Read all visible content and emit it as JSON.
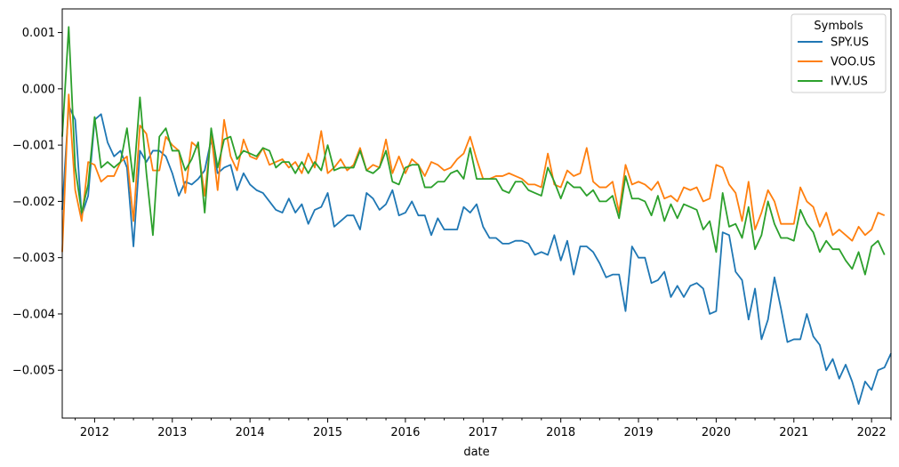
{
  "chart_data": {
    "type": "line",
    "xlabel": "date",
    "ylabel": "",
    "title": "",
    "x_start": "2011-08",
    "x_end": "2022-04",
    "xlim": [
      "2011-08",
      "2022-04"
    ],
    "ylim": [
      -0.00585,
      0.00142
    ],
    "x_major_ticks": [
      {
        "x": "2012-01",
        "label": "2012"
      },
      {
        "x": "2013-01",
        "label": "2013"
      },
      {
        "x": "2014-01",
        "label": "2014"
      },
      {
        "x": "2015-01",
        "label": "2015"
      },
      {
        "x": "2016-01",
        "label": "2016"
      },
      {
        "x": "2017-01",
        "label": "2017"
      },
      {
        "x": "2018-01",
        "label": "2018"
      },
      {
        "x": "2019-01",
        "label": "2019"
      },
      {
        "x": "2020-01",
        "label": "2020"
      },
      {
        "x": "2021-01",
        "label": "2021"
      },
      {
        "x": "2022-01",
        "label": "2022"
      }
    ],
    "y_ticks": [
      {
        "value": 0.001,
        "label": "0.001"
      },
      {
        "value": 0.0,
        "label": "0.000"
      },
      {
        "value": -0.001,
        "label": "−0.001"
      },
      {
        "value": -0.002,
        "label": "−0.002"
      },
      {
        "value": -0.003,
        "label": "−0.003"
      },
      {
        "value": -0.004,
        "label": "−0.004"
      },
      {
        "value": -0.005,
        "label": "−0.005"
      }
    ],
    "legend": {
      "title": "Symbols",
      "position": "top-right"
    },
    "series": [
      {
        "name": "SPY.US",
        "color": "#1f77b4",
        "values": [
          -0.00215,
          -0.0003,
          -0.00055,
          -0.00225,
          -0.0019,
          -0.00055,
          -0.00045,
          -0.00095,
          -0.0012,
          -0.0011,
          -0.0014,
          -0.0028,
          -0.0011,
          -0.0013,
          -0.0011,
          -0.0011,
          -0.0012,
          -0.0015,
          -0.0019,
          -0.00165,
          -0.0017,
          -0.0016,
          -0.00145,
          -0.0009,
          -0.0015,
          -0.0014,
          -0.00135,
          -0.0018,
          -0.0015,
          -0.0017,
          -0.0018,
          -0.00185,
          -0.002,
          -0.00215,
          -0.0022,
          -0.00195,
          -0.0022,
          -0.00205,
          -0.0024,
          -0.00215,
          -0.0021,
          -0.00185,
          -0.00245,
          -0.00235,
          -0.00225,
          -0.00225,
          -0.0025,
          -0.00185,
          -0.00195,
          -0.00215,
          -0.00205,
          -0.0018,
          -0.00225,
          -0.0022,
          -0.002,
          -0.00225,
          -0.00225,
          -0.0026,
          -0.0023,
          -0.0025,
          -0.0025,
          -0.0025,
          -0.0021,
          -0.0022,
          -0.00205,
          -0.00245,
          -0.00265,
          -0.00265,
          -0.00275,
          -0.00275,
          -0.0027,
          -0.0027,
          -0.00275,
          -0.00295,
          -0.0029,
          -0.00295,
          -0.0026,
          -0.00305,
          -0.0027,
          -0.0033,
          -0.0028,
          -0.0028,
          -0.0029,
          -0.0031,
          -0.00335,
          -0.0033,
          -0.0033,
          -0.00395,
          -0.0028,
          -0.003,
          -0.003,
          -0.00345,
          -0.0034,
          -0.00325,
          -0.0037,
          -0.0035,
          -0.0037,
          -0.0035,
          -0.00345,
          -0.00355,
          -0.004,
          -0.00395,
          -0.00255,
          -0.0026,
          -0.00325,
          -0.0034,
          -0.0041,
          -0.00355,
          -0.00445,
          -0.0041,
          -0.00335,
          -0.0039,
          -0.0045,
          -0.00445,
          -0.00445,
          -0.004,
          -0.0044,
          -0.00455,
          -0.005,
          -0.0048,
          -0.00515,
          -0.0049,
          -0.0052,
          -0.0056,
          -0.0052,
          -0.00535,
          -0.005,
          -0.00495,
          -0.0047
        ]
      },
      {
        "name": "VOO.US",
        "color": "#ff7f0e",
        "values": [
          -0.0029,
          -0.0001,
          -0.0018,
          -0.00235,
          -0.0013,
          -0.00135,
          -0.00165,
          -0.00155,
          -0.00155,
          -0.0013,
          -0.0012,
          -0.00235,
          -0.00065,
          -0.0008,
          -0.00145,
          -0.00145,
          -0.00085,
          -0.001,
          -0.0011,
          -0.00185,
          -0.00095,
          -0.00105,
          -0.0019,
          -0.0008,
          -0.0018,
          -0.00055,
          -0.0012,
          -0.00145,
          -0.0009,
          -0.0012,
          -0.00125,
          -0.00105,
          -0.00135,
          -0.0013,
          -0.00125,
          -0.0014,
          -0.0013,
          -0.0015,
          -0.00115,
          -0.0014,
          -0.00075,
          -0.0015,
          -0.0014,
          -0.00125,
          -0.00145,
          -0.00135,
          -0.00105,
          -0.00145,
          -0.00135,
          -0.0014,
          -0.0009,
          -0.0015,
          -0.0012,
          -0.0015,
          -0.00125,
          -0.00135,
          -0.00155,
          -0.0013,
          -0.00135,
          -0.00145,
          -0.0014,
          -0.00125,
          -0.00115,
          -0.00085,
          -0.00125,
          -0.0016,
          -0.0016,
          -0.00155,
          -0.00155,
          -0.0015,
          -0.00155,
          -0.0016,
          -0.0017,
          -0.0017,
          -0.00175,
          -0.00115,
          -0.0017,
          -0.00175,
          -0.00145,
          -0.00155,
          -0.0015,
          -0.00105,
          -0.00165,
          -0.00175,
          -0.00175,
          -0.00165,
          -0.0022,
          -0.00135,
          -0.0017,
          -0.00165,
          -0.0017,
          -0.0018,
          -0.00165,
          -0.00195,
          -0.0019,
          -0.002,
          -0.00175,
          -0.0018,
          -0.00175,
          -0.002,
          -0.00195,
          -0.00135,
          -0.0014,
          -0.0017,
          -0.00185,
          -0.00235,
          -0.00165,
          -0.0025,
          -0.0022,
          -0.0018,
          -0.002,
          -0.0024,
          -0.0024,
          -0.0024,
          -0.00175,
          -0.002,
          -0.0021,
          -0.00245,
          -0.0022,
          -0.0026,
          -0.0025,
          -0.0026,
          -0.0027,
          -0.00245,
          -0.0026,
          -0.0025,
          -0.0022,
          -0.00225
        ]
      },
      {
        "name": "IVV.US",
        "color": "#2ca02c",
        "values": [
          -0.00085,
          0.0011,
          -0.0014,
          -0.0022,
          -0.0017,
          -0.0005,
          -0.0014,
          -0.0013,
          -0.0014,
          -0.0013,
          -0.0007,
          -0.00165,
          -0.00015,
          -0.0015,
          -0.0026,
          -0.00085,
          -0.0007,
          -0.0011,
          -0.0011,
          -0.00145,
          -0.00125,
          -0.00095,
          -0.0022,
          -0.0007,
          -0.0014,
          -0.0009,
          -0.00085,
          -0.00125,
          -0.0011,
          -0.00115,
          -0.0012,
          -0.00105,
          -0.0011,
          -0.0014,
          -0.0013,
          -0.0013,
          -0.0015,
          -0.0013,
          -0.0015,
          -0.0013,
          -0.00145,
          -0.001,
          -0.00145,
          -0.0014,
          -0.0014,
          -0.0014,
          -0.0011,
          -0.00145,
          -0.0015,
          -0.0014,
          -0.0011,
          -0.00165,
          -0.0017,
          -0.0014,
          -0.00135,
          -0.00135,
          -0.00175,
          -0.00175,
          -0.00165,
          -0.00165,
          -0.0015,
          -0.00145,
          -0.0016,
          -0.00105,
          -0.0016,
          -0.0016,
          -0.0016,
          -0.0016,
          -0.0018,
          -0.00185,
          -0.00165,
          -0.00165,
          -0.0018,
          -0.00185,
          -0.0019,
          -0.0014,
          -0.00165,
          -0.00195,
          -0.00165,
          -0.00175,
          -0.00175,
          -0.0019,
          -0.0018,
          -0.002,
          -0.002,
          -0.0019,
          -0.0023,
          -0.00155,
          -0.00195,
          -0.00195,
          -0.002,
          -0.00225,
          -0.0019,
          -0.00235,
          -0.00205,
          -0.0023,
          -0.00205,
          -0.0021,
          -0.00215,
          -0.0025,
          -0.00235,
          -0.0029,
          -0.00185,
          -0.00245,
          -0.0024,
          -0.00265,
          -0.0021,
          -0.00285,
          -0.0026,
          -0.002,
          -0.0024,
          -0.00265,
          -0.00265,
          -0.0027,
          -0.00215,
          -0.0024,
          -0.00255,
          -0.0029,
          -0.0027,
          -0.00285,
          -0.00285,
          -0.00305,
          -0.0032,
          -0.0029,
          -0.0033,
          -0.0028,
          -0.0027,
          -0.00295
        ]
      }
    ]
  }
}
